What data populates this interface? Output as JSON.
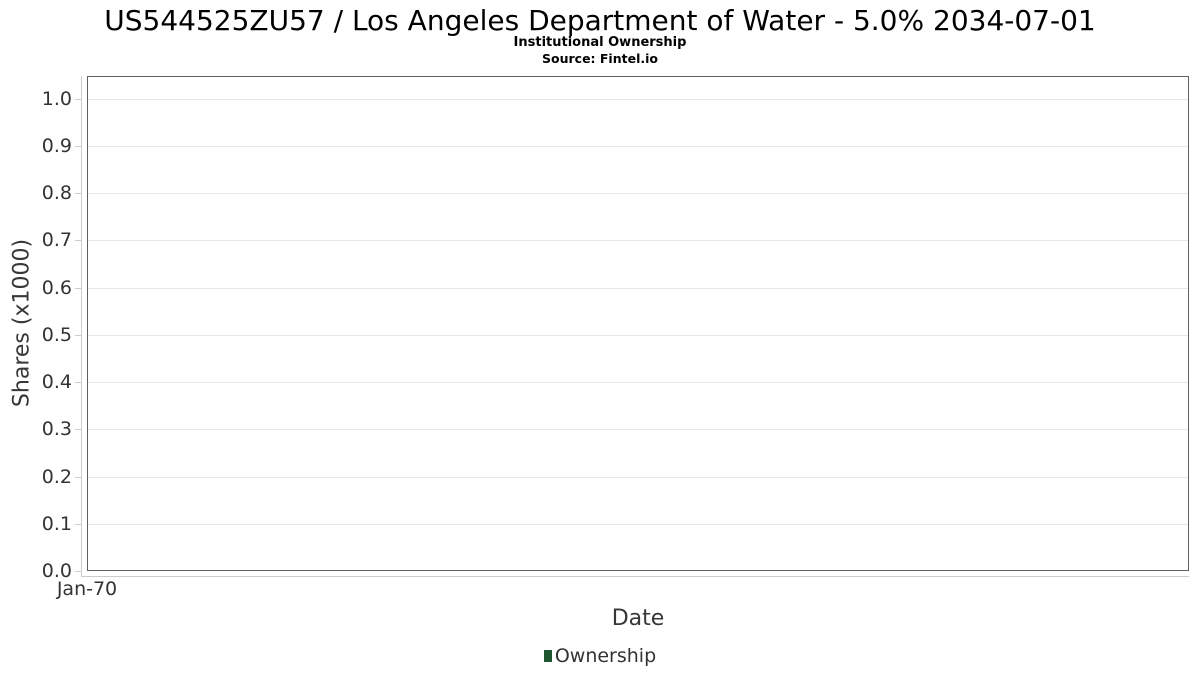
{
  "chart_data": {
    "type": "bar",
    "title": "US544525ZU57 / Los Angeles Department of Water - 5.0% 2034-07-01",
    "subtitle": "Institutional Ownership",
    "source": "Source: Fintel.io",
    "xlabel": "Date",
    "ylabel": "Shares (x1000)",
    "x_tick_labels": [
      "Jan-70"
    ],
    "y_ticks": [
      0.0,
      0.1,
      0.2,
      0.3,
      0.4,
      0.5,
      0.6,
      0.7,
      0.8,
      0.9,
      1.0
    ],
    "y_tick_decimals": 1,
    "ylim": [
      0,
      1.048
    ],
    "grid": true,
    "legend_position": "bottom-center",
    "series": [
      {
        "name": "Ownership",
        "color": "#1e5631",
        "x": [],
        "values": []
      }
    ]
  },
  "colors": {
    "title_text": "#000000",
    "axis_title_text": "#373737",
    "tick_text": "#333333",
    "grid": "#e8e8e8",
    "plot_border": "#606060",
    "axis_line": "#cccccc",
    "legend_marker": "#1e5631",
    "background": "#ffffff"
  }
}
